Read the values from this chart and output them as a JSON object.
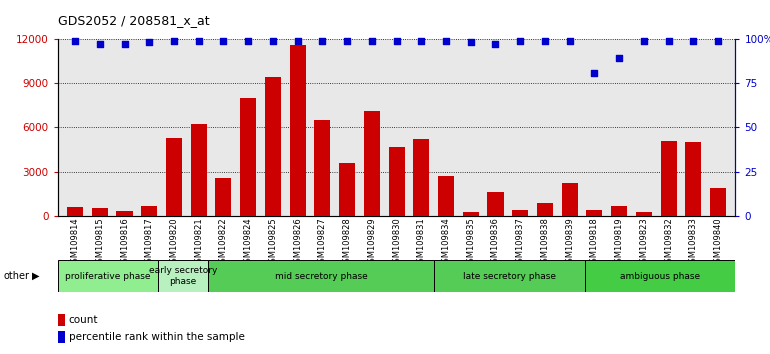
{
  "title": "GDS2052 / 208581_x_at",
  "samples": [
    "GSM109814",
    "GSM109815",
    "GSM109816",
    "GSM109817",
    "GSM109820",
    "GSM109821",
    "GSM109822",
    "GSM109824",
    "GSM109825",
    "GSM109826",
    "GSM109827",
    "GSM109828",
    "GSM109829",
    "GSM109830",
    "GSM109831",
    "GSM109834",
    "GSM109835",
    "GSM109836",
    "GSM109837",
    "GSM109838",
    "GSM109839",
    "GSM109818",
    "GSM109819",
    "GSM109823",
    "GSM109832",
    "GSM109833",
    "GSM109840"
  ],
  "counts": [
    600,
    550,
    350,
    650,
    5300,
    6200,
    2600,
    8000,
    9400,
    11600,
    6500,
    3600,
    7100,
    4700,
    5200,
    2700,
    300,
    1600,
    400,
    900,
    2200,
    400,
    700,
    300,
    5100,
    5000,
    1900
  ],
  "percentile": [
    99,
    97,
    97,
    98,
    99,
    99,
    99,
    99,
    99,
    99,
    99,
    99,
    99,
    99,
    99,
    99,
    98,
    97,
    99,
    99,
    99,
    81,
    89,
    99,
    99,
    99,
    99
  ],
  "ylim_left": [
    0,
    12000
  ],
  "ylim_right": [
    0,
    100
  ],
  "yticks_left": [
    0,
    3000,
    6000,
    9000,
    12000
  ],
  "ytick_labels_left": [
    "0",
    "3000",
    "6000",
    "9000",
    "12000"
  ],
  "yticks_right": [
    0,
    25,
    50,
    75,
    100
  ],
  "ytick_labels_right": [
    "0",
    "25",
    "50",
    "75",
    "100%"
  ],
  "bar_color": "#cc0000",
  "dot_color": "#0000cc",
  "phase_data": [
    {
      "label": "proliferative phase",
      "color": "#90EE90",
      "start": 0,
      "end": 4
    },
    {
      "label": "early secretory\nphase",
      "color": "#b8f0c0",
      "start": 4,
      "end": 6
    },
    {
      "label": "mid secretory phase",
      "color": "#55cc55",
      "start": 6,
      "end": 15
    },
    {
      "label": "late secretory phase",
      "color": "#55cc55",
      "start": 15,
      "end": 21
    },
    {
      "label": "ambiguous phase",
      "color": "#44cc44",
      "start": 21,
      "end": 27
    }
  ],
  "plot_bg": "#e8e8e8"
}
